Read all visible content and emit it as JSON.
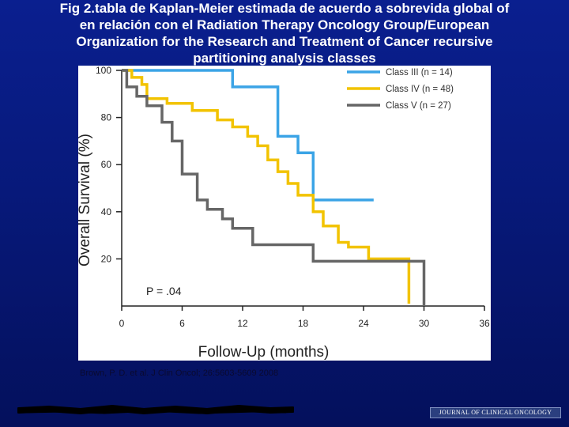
{
  "title_lines": [
    "Fig 2.tabla de  Kaplan-Meier estimada de acuerdo a sobrevida global  of",
    "en relación con el  Radiation Therapy Oncology Group/European",
    "Organization for the Research and Treatment of Cancer recursive",
    "partitioning analysis classes"
  ],
  "citation": "Brown, P. D. et al. J Clin Oncol; 26:5603-5609 2008",
  "journal_badge": "JOURNAL OF CLINICAL ONCOLOGY",
  "chart_data": {
    "type": "line",
    "step": true,
    "xlabel": "Follow-Up (months)",
    "ylabel": "Overall Survival (%)",
    "xlim": [
      0,
      36
    ],
    "ylim": [
      0,
      100
    ],
    "xticks": [
      "0",
      "6",
      "12",
      "18",
      "24",
      "30",
      "36"
    ],
    "yticks": [
      "20",
      "40",
      "60",
      "80",
      "100"
    ],
    "annotation": "P = .04",
    "legend_position": "top-right",
    "series": [
      {
        "name": "Class III (n = 14)",
        "color": "#3ba4e6",
        "x": [
          0,
          11,
          11,
          15.5,
          15.5,
          17.5,
          17.5,
          19,
          19,
          25
        ],
        "y": [
          100,
          100,
          93,
          93,
          72,
          72,
          65,
          65,
          45,
          45
        ]
      },
      {
        "name": "Class IV (n = 48)",
        "color": "#f2c300",
        "x": [
          0,
          1,
          1,
          2,
          2,
          2.5,
          2.5,
          4.5,
          4.5,
          7,
          7,
          9.5,
          9.5,
          11,
          11,
          12.5,
          12.5,
          13.5,
          13.5,
          14.5,
          14.5,
          15.5,
          15.5,
          16.5,
          16.5,
          17.5,
          17.5,
          19,
          19,
          20,
          20,
          21.5,
          21.5,
          22.5,
          22.5,
          24.5,
          24.5,
          28.5,
          28.5
        ],
        "y": [
          100,
          100,
          97,
          97,
          94,
          94,
          88,
          88,
          86,
          86,
          83,
          83,
          79,
          79,
          76,
          76,
          72,
          72,
          68,
          68,
          62,
          62,
          57,
          57,
          52,
          52,
          47,
          47,
          40,
          40,
          34,
          34,
          27,
          27,
          25,
          25,
          20,
          20,
          1
        ]
      },
      {
        "name": "Class V (n = 27)",
        "color": "#666666",
        "x": [
          0,
          0.5,
          0.5,
          1.5,
          1.5,
          2.5,
          2.5,
          4,
          4,
          5,
          5,
          6,
          6,
          7.5,
          7.5,
          8.5,
          8.5,
          10,
          10,
          11,
          11,
          13,
          13,
          19,
          19,
          29.5,
          29.5,
          30,
          30
        ],
        "y": [
          100,
          100,
          93,
          93,
          89,
          89,
          85,
          85,
          78,
          78,
          70,
          70,
          56,
          56,
          45,
          45,
          41,
          41,
          37,
          37,
          33,
          33,
          26,
          26,
          19,
          19,
          19,
          19,
          0
        ]
      }
    ]
  }
}
